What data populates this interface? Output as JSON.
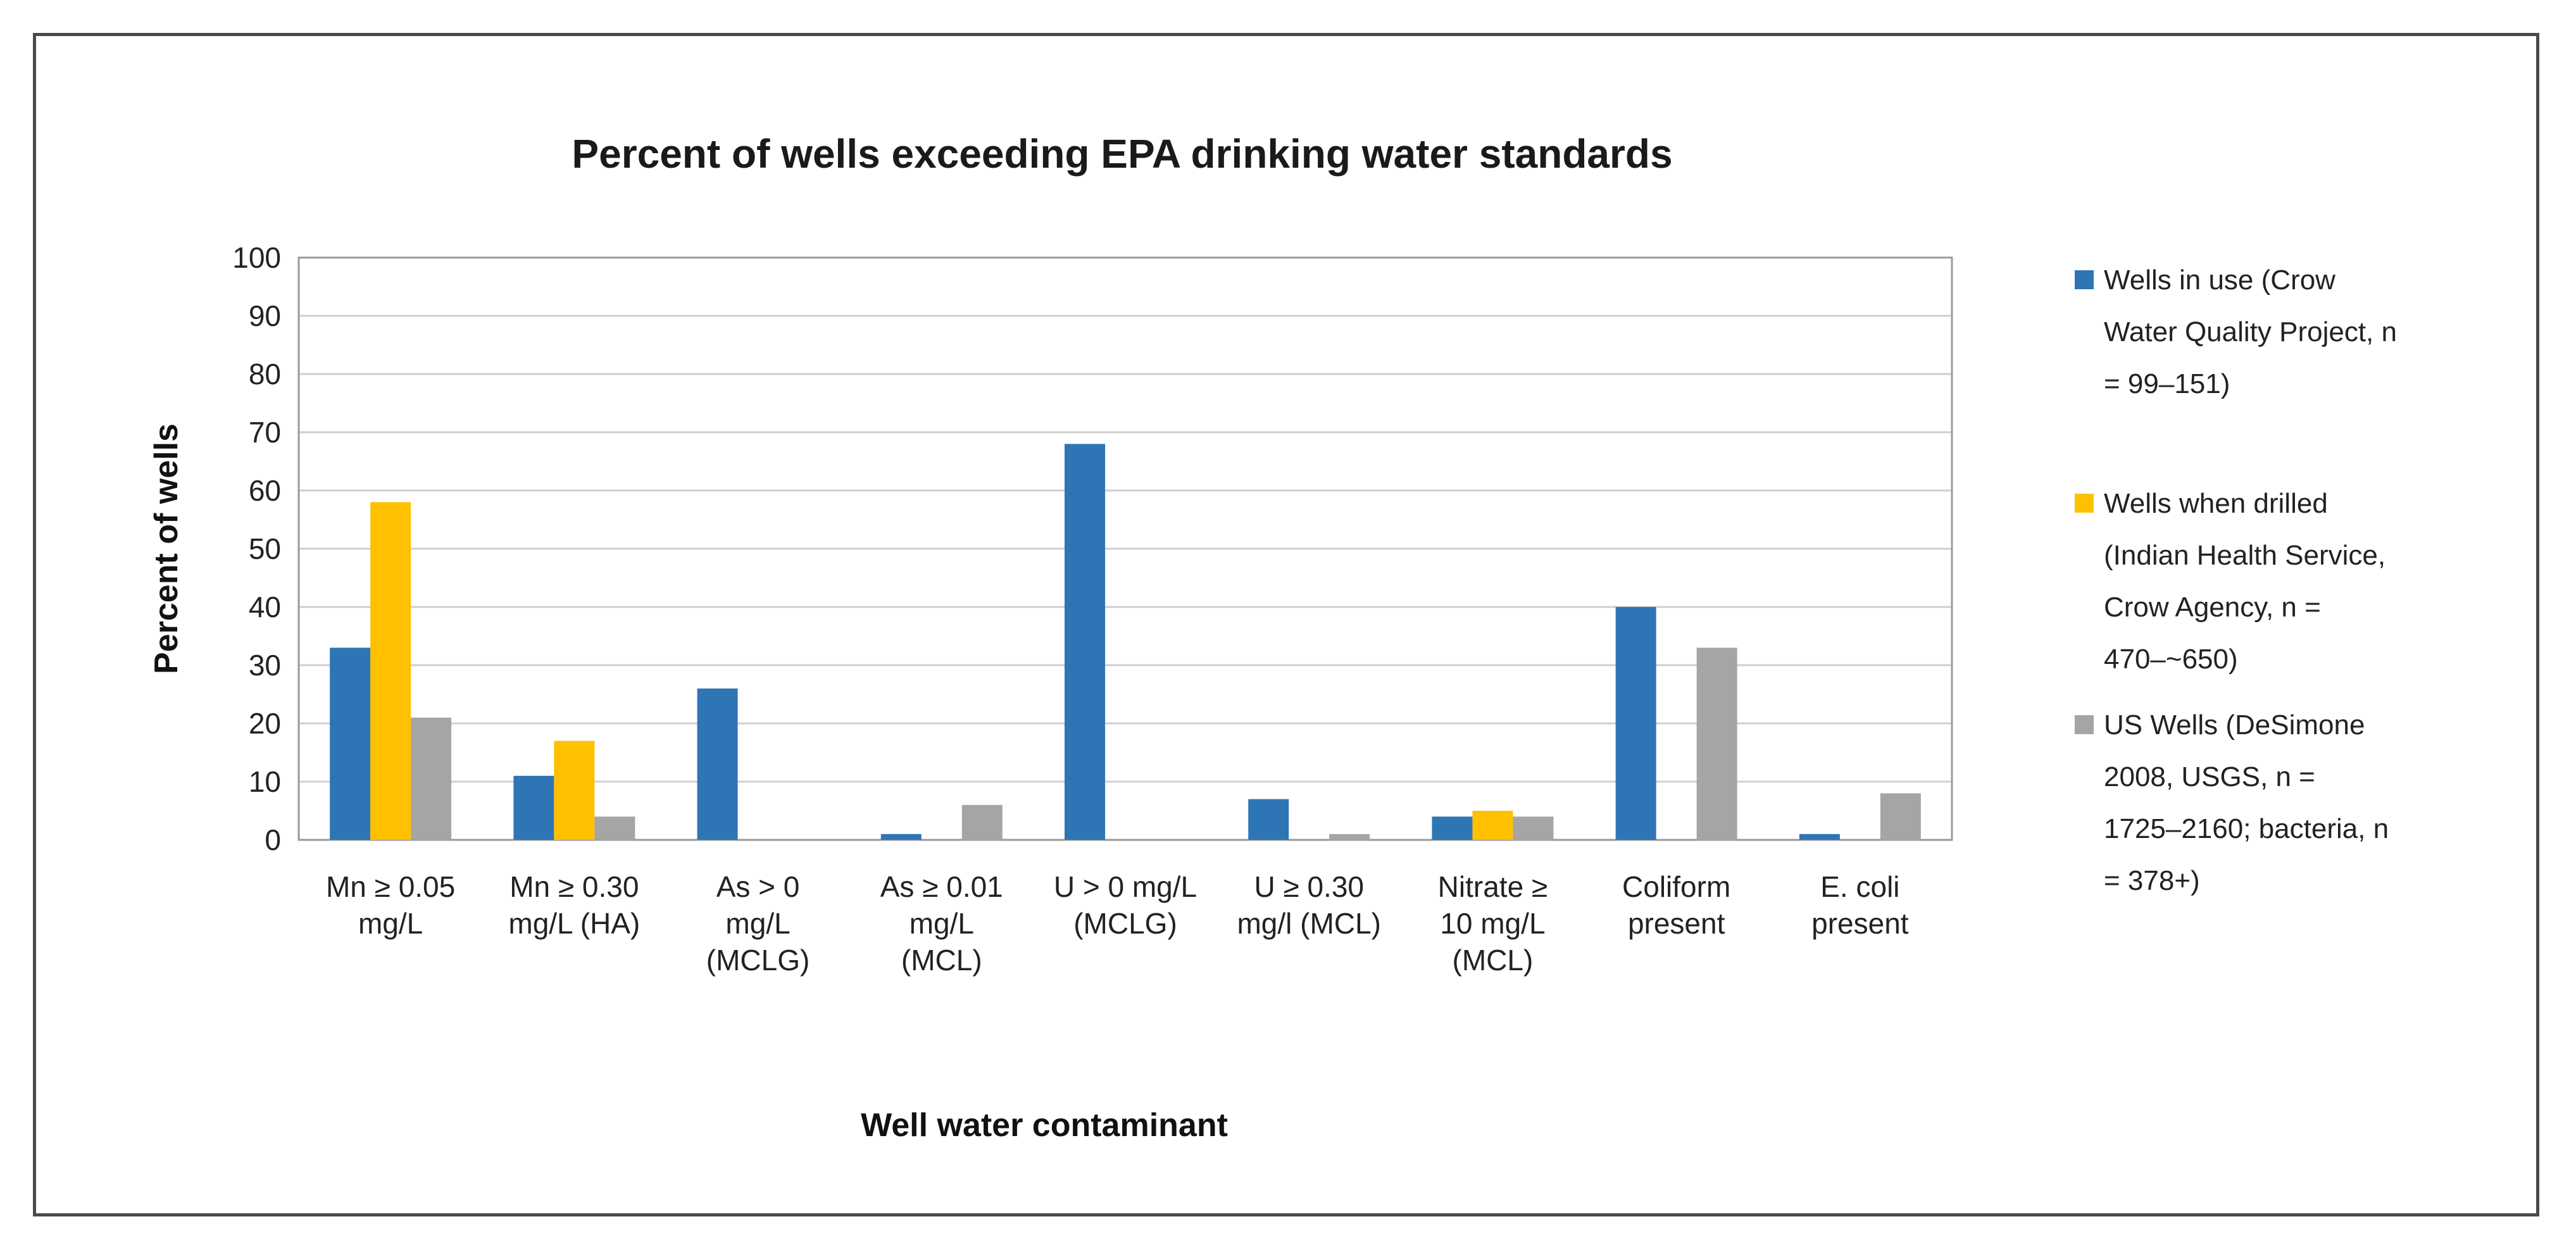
{
  "chart_data": {
    "type": "bar",
    "title": "Percent of wells exceeding EPA drinking water standards",
    "xlabel": "Well water contaminant",
    "ylabel": "Percent of wells",
    "ylim": [
      0,
      100
    ],
    "yticks": [
      0,
      10,
      20,
      30,
      40,
      50,
      60,
      70,
      80,
      90,
      100
    ],
    "grid": true,
    "legend_position": "right",
    "categories": [
      [
        "Mn ≥ 0.05",
        "mg/L"
      ],
      [
        "Mn ≥ 0.30",
        "mg/L (HA)"
      ],
      [
        "As > 0",
        "mg/L",
        "(MCLG)"
      ],
      [
        "As ≥ 0.01",
        "mg/L",
        "(MCL)"
      ],
      [
        "U > 0 mg/L",
        "(MCLG)"
      ],
      [
        "U ≥ 0.30",
        "mg/l (MCL)"
      ],
      [
        "Nitrate ≥",
        "10 mg/L",
        "(MCL)"
      ],
      [
        "Coliform",
        "present"
      ],
      [
        "E. coli",
        "present"
      ]
    ],
    "series": [
      {
        "name": "Wells in use (Crow Water Quality Project, n = 99–151)",
        "legend_lines": [
          "Wells in use (Crow",
          "Water Quality Project, n",
          "= 99–151)"
        ],
        "color": "#2e75b6",
        "values": [
          33,
          11,
          26,
          1,
          68,
          7,
          4,
          40,
          1
        ]
      },
      {
        "name": "Wells when drilled (Indian Health Service, Crow Agency, n = 470–~650)",
        "legend_lines": [
          "Wells when drilled",
          "(Indian Health Service,",
          "Crow Agency, n =",
          "470–~650)"
        ],
        "color": "#ffc000",
        "values": [
          58,
          17,
          null,
          null,
          null,
          null,
          5,
          null,
          null
        ]
      },
      {
        "name": "US Wells (DeSimone 2008, USGS, n = 1725–2160; bacteria, n = 378+)",
        "legend_lines": [
          "US Wells (DeSimone",
          "2008, USGS, n =",
          "1725–2160; bacteria, n",
          "= 378+)"
        ],
        "color": "#a5a5a5",
        "values": [
          21,
          4,
          null,
          6,
          null,
          1,
          4,
          33,
          8
        ]
      }
    ]
  }
}
